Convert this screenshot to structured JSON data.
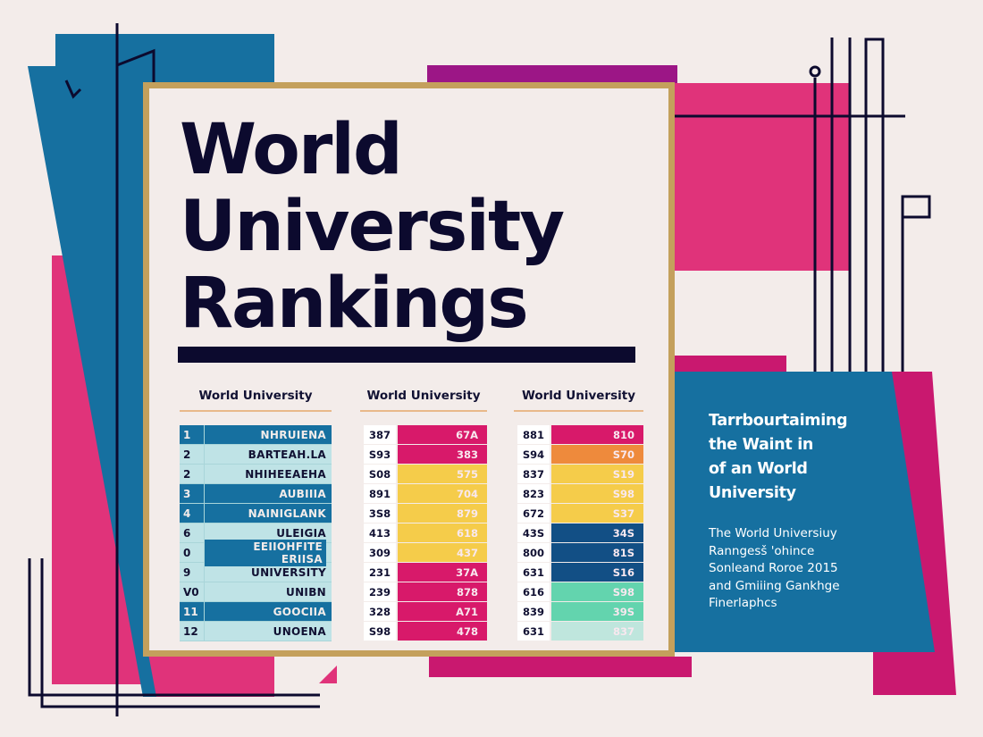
{
  "colors": {
    "background": "#f3ecea",
    "navy": "#0c0a2e",
    "blue": "#1670a0",
    "pink": "#e0337a",
    "magenta": "#c9186f",
    "purple": "#9c1686",
    "gold": "#c4a05c",
    "yellow": "#f5cc4a",
    "orange": "#ee8a3c",
    "dark_blue": "#124f85",
    "mint": "#63d4ae",
    "pale_mint": "#bfe6dd",
    "light_teal": "#bfe3e6"
  },
  "card": {
    "title_lines": [
      "World",
      "University",
      "Rankings"
    ]
  },
  "tables": {
    "left": {
      "header": "World University",
      "rows": [
        {
          "rank": "1",
          "name": "NHRUIENA",
          "style": "dark"
        },
        {
          "rank": "2",
          "name": "BARTEAH.LA",
          "style": "light"
        },
        {
          "rank": "2",
          "name": "NHIHEEAEHA",
          "style": "light"
        },
        {
          "rank": "3",
          "name": "AUBIIIA",
          "style": "dark"
        },
        {
          "rank": "4",
          "name": "NAINIGLANK",
          "style": "dark"
        },
        {
          "rank": "6",
          "name": "ULEIGIA",
          "style": "light"
        },
        {
          "rank": "0",
          "name": "EEIIOHFITE ERIISA",
          "style": "highlight"
        },
        {
          "rank": "9",
          "name": "UNIVERSITY",
          "style": "light"
        },
        {
          "rank": "V0",
          "name": "UNIBN",
          "style": "light"
        },
        {
          "rank": "11",
          "name": "GOOCIIA",
          "style": "dark"
        },
        {
          "rank": "12",
          "name": "UNOENA",
          "style": "light"
        }
      ]
    },
    "middle": {
      "header": "World University",
      "rows": [
        {
          "score": "387",
          "value": "67A",
          "color": "#d8196a"
        },
        {
          "score": "S93",
          "value": "383",
          "color": "#d8196a"
        },
        {
          "score": "S08",
          "value": "575",
          "color": "#f5cc4a"
        },
        {
          "score": "891",
          "value": "704",
          "color": "#f5cc4a"
        },
        {
          "score": "3S8",
          "value": "879",
          "color": "#f5cc4a"
        },
        {
          "score": "413",
          "value": "618",
          "color": "#f5cc4a"
        },
        {
          "score": "309",
          "value": "437",
          "color": "#f5cc4a"
        },
        {
          "score": "231",
          "value": "37A",
          "color": "#d8196a"
        },
        {
          "score": "239",
          "value": "878",
          "color": "#d8196a"
        },
        {
          "score": "328",
          "value": "A71",
          "color": "#d8196a"
        },
        {
          "score": "S98",
          "value": "478",
          "color": "#d8196a"
        }
      ]
    },
    "right": {
      "header": "World University",
      "rows": [
        {
          "score": "881",
          "value": "810",
          "color": "#d8196a"
        },
        {
          "score": "S94",
          "value": "S70",
          "color": "#ee8a3c"
        },
        {
          "score": "837",
          "value": "S19",
          "color": "#f5cc4a"
        },
        {
          "score": "823",
          "value": "S98",
          "color": "#f5cc4a"
        },
        {
          "score": "672",
          "value": "S37",
          "color": "#f5cc4a"
        },
        {
          "score": "43S",
          "value": "34S",
          "color": "#124f85"
        },
        {
          "score": "800",
          "value": "81S",
          "color": "#124f85"
        },
        {
          "score": "631",
          "value": "S16",
          "color": "#124f85"
        },
        {
          "score": "616",
          "value": "S98",
          "color": "#63d4ae"
        },
        {
          "score": "839",
          "value": "39S",
          "color": "#63d4ae"
        },
        {
          "score": "631",
          "value": "837",
          "color": "#bfe6dd"
        }
      ]
    }
  },
  "side_panel": {
    "heading_lines": [
      "Tarrbourtaiming",
      "the Waint in",
      "of an World",
      "University"
    ],
    "body_lines": [
      "The World Universiuy",
      "Ranngesš 'ohince",
      "Sonleand  Roroe  2015",
      "and Gmiiing Gankhge",
      "Finerlaphcs"
    ]
  }
}
